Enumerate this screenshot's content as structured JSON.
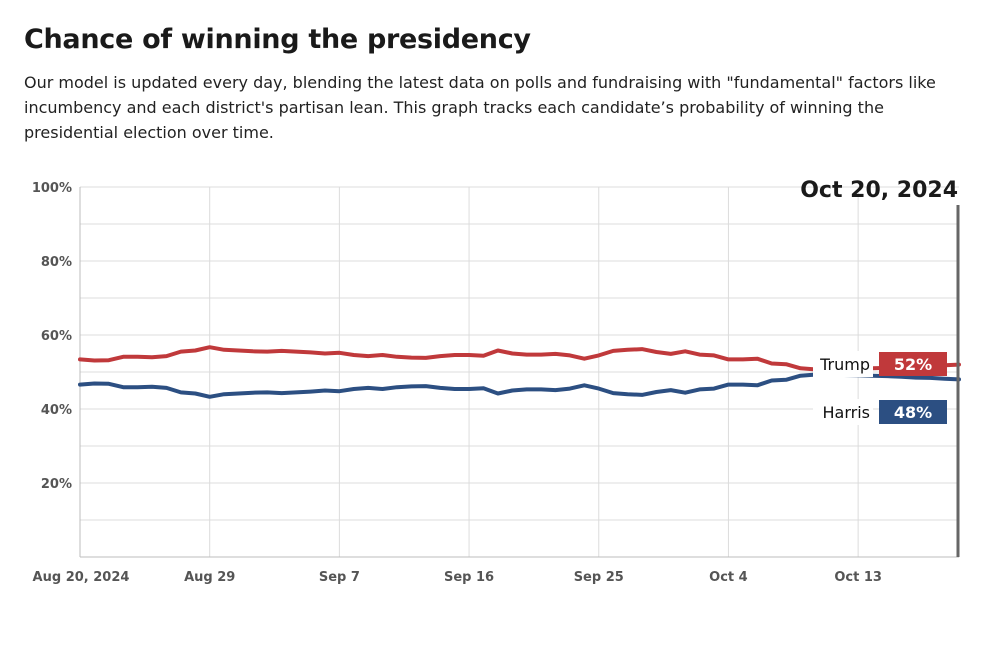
{
  "header": {
    "title": "Chance of winning the presidency",
    "description": "Our model is updated every day, blending the latest data on polls and fundraising with \"fundamental\" factors like incumbency and each district's partisan lean. This graph tracks each candidate’s probability of winning the presidential election over time."
  },
  "chart_data": {
    "type": "line",
    "title": "Chance of winning the presidency",
    "xlabel": "",
    "ylabel": "",
    "x_range": [
      "2024-08-20",
      "2024-10-20"
    ],
    "ylim": [
      0,
      100
    ],
    "y_ticks": [
      20,
      40,
      60,
      80,
      100
    ],
    "y_tick_labels": [
      "20%",
      "40%",
      "60%",
      "80%",
      "100%"
    ],
    "x_ticks": [
      "2024-08-20",
      "2024-08-29",
      "2024-09-07",
      "2024-09-16",
      "2024-09-25",
      "2024-10-04",
      "2024-10-13"
    ],
    "x_tick_labels": [
      "Aug 20, 2024",
      "Aug 29",
      "Sep 7",
      "Sep 16",
      "Sep 25",
      "Oct 4",
      "Oct 13"
    ],
    "grid": true,
    "highlight_date": "Oct 20, 2024",
    "series": [
      {
        "name": "Trump",
        "color": "#c0393b",
        "current_label": "52%",
        "points": [
          [
            "2024-08-20",
            53.4
          ],
          [
            "2024-08-21",
            53.1
          ],
          [
            "2024-08-22",
            53.2
          ],
          [
            "2024-08-23",
            54.1
          ],
          [
            "2024-08-24",
            54.1
          ],
          [
            "2024-08-25",
            54.0
          ],
          [
            "2024-08-26",
            54.3
          ],
          [
            "2024-08-27",
            55.5
          ],
          [
            "2024-08-28",
            55.8
          ],
          [
            "2024-08-29",
            56.7
          ],
          [
            "2024-08-30",
            56.0
          ],
          [
            "2024-08-31",
            55.8
          ],
          [
            "2024-09-01",
            55.6
          ],
          [
            "2024-09-02",
            55.5
          ],
          [
            "2024-09-03",
            55.7
          ],
          [
            "2024-09-04",
            55.5
          ],
          [
            "2024-09-05",
            55.3
          ],
          [
            "2024-09-06",
            55.0
          ],
          [
            "2024-09-07",
            55.2
          ],
          [
            "2024-09-08",
            54.6
          ],
          [
            "2024-09-09",
            54.3
          ],
          [
            "2024-09-10",
            54.6
          ],
          [
            "2024-09-11",
            54.1
          ],
          [
            "2024-09-12",
            53.9
          ],
          [
            "2024-09-13",
            53.8
          ],
          [
            "2024-09-14",
            54.3
          ],
          [
            "2024-09-15",
            54.6
          ],
          [
            "2024-09-16",
            54.6
          ],
          [
            "2024-09-17",
            54.4
          ],
          [
            "2024-09-18",
            55.8
          ],
          [
            "2024-09-19",
            55.0
          ],
          [
            "2024-09-20",
            54.7
          ],
          [
            "2024-09-21",
            54.7
          ],
          [
            "2024-09-22",
            54.9
          ],
          [
            "2024-09-23",
            54.5
          ],
          [
            "2024-09-24",
            53.6
          ],
          [
            "2024-09-25",
            54.5
          ],
          [
            "2024-09-26",
            55.7
          ],
          [
            "2024-09-27",
            56.0
          ],
          [
            "2024-09-28",
            56.2
          ],
          [
            "2024-09-29",
            55.4
          ],
          [
            "2024-09-30",
            54.9
          ],
          [
            "2024-10-01",
            55.6
          ],
          [
            "2024-10-02",
            54.7
          ],
          [
            "2024-10-03",
            54.5
          ],
          [
            "2024-10-04",
            53.4
          ],
          [
            "2024-10-05",
            53.4
          ],
          [
            "2024-10-06",
            53.6
          ],
          [
            "2024-10-07",
            52.3
          ],
          [
            "2024-10-08",
            52.1
          ],
          [
            "2024-10-09",
            51.0
          ],
          [
            "2024-10-10",
            50.7
          ],
          [
            "2024-10-11",
            50.6
          ],
          [
            "2024-10-12",
            50.8
          ],
          [
            "2024-10-13",
            50.9
          ],
          [
            "2024-10-14",
            51.0
          ],
          [
            "2024-10-15",
            51.1
          ],
          [
            "2024-10-16",
            51.3
          ],
          [
            "2024-10-17",
            51.5
          ],
          [
            "2024-10-18",
            51.6
          ],
          [
            "2024-10-19",
            51.8
          ],
          [
            "2024-10-20",
            52.0
          ]
        ]
      },
      {
        "name": "Harris",
        "color": "#2c4f82",
        "current_label": "48%",
        "points": [
          [
            "2024-08-20",
            46.6
          ],
          [
            "2024-08-21",
            46.9
          ],
          [
            "2024-08-22",
            46.8
          ],
          [
            "2024-08-23",
            45.9
          ],
          [
            "2024-08-24",
            45.9
          ],
          [
            "2024-08-25",
            46.0
          ],
          [
            "2024-08-26",
            45.7
          ],
          [
            "2024-08-27",
            44.5
          ],
          [
            "2024-08-28",
            44.2
          ],
          [
            "2024-08-29",
            43.3
          ],
          [
            "2024-08-30",
            44.0
          ],
          [
            "2024-08-31",
            44.2
          ],
          [
            "2024-09-01",
            44.4
          ],
          [
            "2024-09-02",
            44.5
          ],
          [
            "2024-09-03",
            44.3
          ],
          [
            "2024-09-04",
            44.5
          ],
          [
            "2024-09-05",
            44.7
          ],
          [
            "2024-09-06",
            45.0
          ],
          [
            "2024-09-07",
            44.8
          ],
          [
            "2024-09-08",
            45.4
          ],
          [
            "2024-09-09",
            45.7
          ],
          [
            "2024-09-10",
            45.4
          ],
          [
            "2024-09-11",
            45.9
          ],
          [
            "2024-09-12",
            46.1
          ],
          [
            "2024-09-13",
            46.2
          ],
          [
            "2024-09-14",
            45.7
          ],
          [
            "2024-09-15",
            45.4
          ],
          [
            "2024-09-16",
            45.4
          ],
          [
            "2024-09-17",
            45.6
          ],
          [
            "2024-09-18",
            44.2
          ],
          [
            "2024-09-19",
            45.0
          ],
          [
            "2024-09-20",
            45.3
          ],
          [
            "2024-09-21",
            45.3
          ],
          [
            "2024-09-22",
            45.1
          ],
          [
            "2024-09-23",
            45.5
          ],
          [
            "2024-09-24",
            46.4
          ],
          [
            "2024-09-25",
            45.5
          ],
          [
            "2024-09-26",
            44.3
          ],
          [
            "2024-09-27",
            44.0
          ],
          [
            "2024-09-28",
            43.8
          ],
          [
            "2024-09-29",
            44.6
          ],
          [
            "2024-09-30",
            45.1
          ],
          [
            "2024-10-01",
            44.4
          ],
          [
            "2024-10-02",
            45.3
          ],
          [
            "2024-10-03",
            45.5
          ],
          [
            "2024-10-04",
            46.6
          ],
          [
            "2024-10-05",
            46.6
          ],
          [
            "2024-10-06",
            46.4
          ],
          [
            "2024-10-07",
            47.7
          ],
          [
            "2024-10-08",
            47.9
          ],
          [
            "2024-10-09",
            49.0
          ],
          [
            "2024-10-10",
            49.3
          ],
          [
            "2024-10-11",
            49.4
          ],
          [
            "2024-10-12",
            49.2
          ],
          [
            "2024-10-13",
            49.1
          ],
          [
            "2024-10-14",
            49.0
          ],
          [
            "2024-10-15",
            48.9
          ],
          [
            "2024-10-16",
            48.7
          ],
          [
            "2024-10-17",
            48.5
          ],
          [
            "2024-10-18",
            48.4
          ],
          [
            "2024-10-19",
            48.2
          ],
          [
            "2024-10-20",
            48.0
          ]
        ]
      }
    ]
  }
}
